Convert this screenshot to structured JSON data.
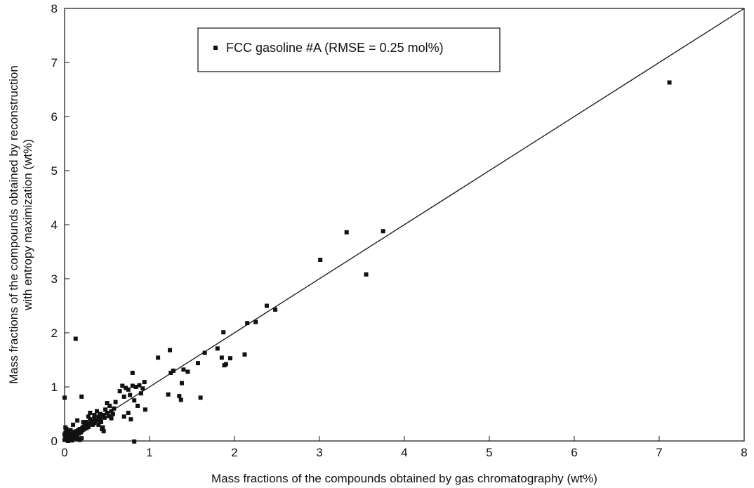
{
  "chart_data": {
    "type": "scatter",
    "xlabel": "Mass fractions of the compounds obtained by gas chromatography (wt%)",
    "ylabel_lines": [
      "Mass fractions of the compounds obtained by reconstruction",
      "with entropy maximization (wt%)"
    ],
    "xlim": [
      0,
      8
    ],
    "ylim": [
      0,
      8
    ],
    "x_ticks": [
      "0",
      "1",
      "2",
      "3",
      "4",
      "5",
      "6",
      "7",
      "8"
    ],
    "y_ticks": [
      "0",
      "1",
      "2",
      "3",
      "4",
      "5",
      "6",
      "7",
      "8"
    ],
    "grid": false,
    "legend": {
      "position": "top-left",
      "series_label": "FCC gasoline #A (RMSE = 0.25 mol%)"
    },
    "reference_line": {
      "from": [
        0,
        0
      ],
      "to": [
        8,
        8
      ]
    },
    "series": [
      {
        "name": "FCC gasoline #A (RMSE = 0.25 mol%)",
        "color": "#111111",
        "marker": "square",
        "points": [
          [
            0.0,
            0.02
          ],
          [
            0.01,
            0.05
          ],
          [
            0.02,
            0.03
          ],
          [
            0.03,
            0.08
          ],
          [
            0.04,
            0.0
          ],
          [
            0.05,
            0.02
          ],
          [
            0.06,
            0.1
          ],
          [
            0.07,
            0.04
          ],
          [
            0.08,
            0.06
          ],
          [
            0.09,
            0.01
          ],
          [
            0.1,
            0.12
          ],
          [
            0.11,
            0.07
          ],
          [
            0.12,
            0.15
          ],
          [
            0.13,
            0.09
          ],
          [
            0.14,
            0.18
          ],
          [
            0.15,
            0.11
          ],
          [
            0.16,
            0.2
          ],
          [
            0.17,
            0.14
          ],
          [
            0.18,
            0.22
          ],
          [
            0.19,
            0.16
          ],
          [
            0.2,
            0.18
          ],
          [
            0.21,
            0.25
          ],
          [
            0.22,
            0.21
          ],
          [
            0.23,
            0.27
          ],
          [
            0.24,
            0.23
          ],
          [
            0.25,
            0.3
          ],
          [
            0.26,
            0.24
          ],
          [
            0.27,
            0.28
          ],
          [
            0.28,
            0.26
          ],
          [
            0.29,
            0.32
          ],
          [
            0.01,
            0.15
          ],
          [
            0.02,
            0.22
          ],
          [
            0.0,
            0.12
          ],
          [
            0.03,
            0.18
          ],
          [
            0.01,
            0.25
          ],
          [
            0.05,
            0.15
          ],
          [
            0.07,
            0.2
          ],
          [
            0.09,
            0.17
          ],
          [
            0.12,
            0.05
          ],
          [
            0.15,
            0.03
          ],
          [
            0.18,
            0.02
          ],
          [
            0.2,
            0.05
          ],
          [
            0.0,
            0.8
          ],
          [
            0.13,
            1.89
          ],
          [
            0.2,
            0.82
          ],
          [
            0.1,
            0.3
          ],
          [
            0.15,
            0.38
          ],
          [
            0.22,
            0.35
          ],
          [
            0.3,
            0.4
          ],
          [
            0.32,
            0.36
          ],
          [
            0.35,
            0.42
          ],
          [
            0.37,
            0.38
          ],
          [
            0.4,
            0.45
          ],
          [
            0.42,
            0.4
          ],
          [
            0.45,
            0.48
          ],
          [
            0.47,
            0.43
          ],
          [
            0.5,
            0.52
          ],
          [
            0.52,
            0.46
          ],
          [
            0.55,
            0.55
          ],
          [
            0.57,
            0.5
          ],
          [
            0.35,
            0.33
          ],
          [
            0.38,
            0.55
          ],
          [
            0.4,
            0.3
          ],
          [
            0.43,
            0.35
          ],
          [
            0.45,
            0.25
          ],
          [
            0.48,
            0.58
          ],
          [
            0.5,
            0.7
          ],
          [
            0.53,
            0.65
          ],
          [
            0.55,
            0.42
          ],
          [
            0.58,
            0.6
          ],
          [
            0.6,
            0.72
          ],
          [
            0.25,
            0.35
          ],
          [
            0.28,
            0.45
          ],
          [
            0.42,
            0.5
          ],
          [
            0.44,
            0.22
          ],
          [
            0.46,
            0.18
          ],
          [
            0.35,
            0.48
          ],
          [
            0.3,
            0.52
          ],
          [
            0.33,
            0.3
          ],
          [
            0.4,
            0.38
          ],
          [
            0.65,
            0.92
          ],
          [
            0.68,
            1.02
          ],
          [
            0.7,
            0.82
          ],
          [
            0.72,
            0.98
          ],
          [
            0.75,
            0.52
          ],
          [
            0.77,
            0.85
          ],
          [
            0.78,
            0.4
          ],
          [
            0.8,
            1.26
          ],
          [
            0.82,
            0.75
          ],
          [
            0.84,
            1.0
          ],
          [
            0.86,
            0.65
          ],
          [
            0.88,
            1.03
          ],
          [
            0.9,
            0.88
          ],
          [
            0.92,
            0.97
          ],
          [
            0.94,
            1.09
          ],
          [
            0.95,
            0.58
          ],
          [
            0.8,
            1.02
          ],
          [
            0.82,
            -0.01
          ],
          [
            0.75,
            0.95
          ],
          [
            0.7,
            0.45
          ],
          [
            1.1,
            1.54
          ],
          [
            1.22,
            0.86
          ],
          [
            1.24,
            1.68
          ],
          [
            1.25,
            1.26
          ],
          [
            1.28,
            1.3
          ],
          [
            1.35,
            0.83
          ],
          [
            1.37,
            0.76
          ],
          [
            1.38,
            1.07
          ],
          [
            1.4,
            1.32
          ],
          [
            1.45,
            1.28
          ],
          [
            1.57,
            1.44
          ],
          [
            1.6,
            0.8
          ],
          [
            1.65,
            1.63
          ],
          [
            1.8,
            1.71
          ],
          [
            1.85,
            1.54
          ],
          [
            1.87,
            2.01
          ],
          [
            1.88,
            1.4
          ],
          [
            1.9,
            1.42
          ],
          [
            1.95,
            1.53
          ],
          [
            2.12,
            1.6
          ],
          [
            2.15,
            2.18
          ],
          [
            2.25,
            2.2
          ],
          [
            2.38,
            2.5
          ],
          [
            2.48,
            2.43
          ],
          [
            3.01,
            3.35
          ],
          [
            3.32,
            3.86
          ],
          [
            3.55,
            3.08
          ],
          [
            3.75,
            3.88
          ],
          [
            7.12,
            6.63
          ]
        ]
      }
    ]
  }
}
